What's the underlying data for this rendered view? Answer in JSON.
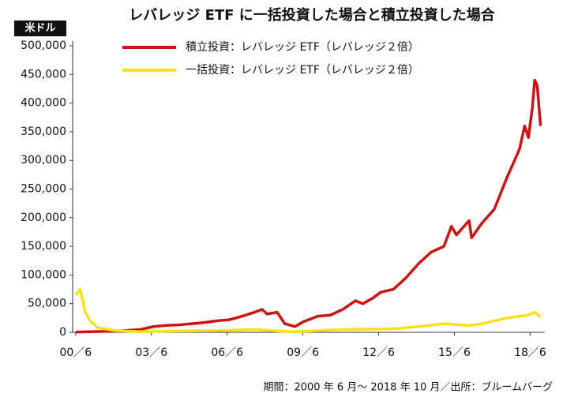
{
  "chart_data": {
    "type": "line",
    "title": "レバレッジ ETF に一括投資した場合と積立投資した場合",
    "y_label": "米ドル",
    "note": "期間：2000 年 6 月〜 2018 年 10 月／出所：ブルームバーグ",
    "legend": "top-left",
    "grid": false,
    "xlim": [
      2000.3,
      2019.0
    ],
    "xticks": [
      {
        "value": 2000.42,
        "label": "00／6"
      },
      {
        "value": 2003.42,
        "label": "03／6"
      },
      {
        "value": 2006.42,
        "label": "06／6"
      },
      {
        "value": 2009.42,
        "label": "09／6"
      },
      {
        "value": 2012.42,
        "label": "12／6"
      },
      {
        "value": 2015.42,
        "label": "15／6"
      },
      {
        "value": 2018.42,
        "label": "18／6"
      }
    ],
    "ylim": [
      0,
      500000
    ],
    "yticks": [
      0,
      {
        "value": 50000,
        "label": "50,000"
      },
      {
        "value": 100000,
        "label": "100,000"
      },
      {
        "value": 150000,
        "label": "150,000"
      },
      {
        "value": 200000,
        "label": "200,000"
      },
      {
        "value": 250000,
        "label": "250,000"
      },
      {
        "value": 300000,
        "label": "300,000"
      },
      {
        "value": 350000,
        "label": "350,000"
      },
      {
        "value": 400000,
        "label": "400,000"
      },
      {
        "value": 450000,
        "label": "450,000"
      },
      {
        "value": 500000,
        "label": "500,000"
      }
    ],
    "series": [
      {
        "name": "積立投資：レバレッジ ETF（レバレッジ２倍）",
        "color": "#cc1414",
        "x": [
          2000.42,
          2001,
          2002,
          2003,
          2003.5,
          2004,
          2004.5,
          2005,
          2005.5,
          2006,
          2006.5,
          2007,
          2007.5,
          2007.8,
          2008,
          2008.4,
          2008.7,
          2009.1,
          2009.42,
          2010,
          2010.5,
          2011,
          2011.5,
          2011.8,
          2012.2,
          2012.5,
          2013,
          2013.5,
          2014,
          2014.5,
          2015,
          2015.3,
          2015.5,
          2016,
          2016.1,
          2016.5,
          2017,
          2017.5,
          2017.8,
          2018,
          2018.2,
          2018.35,
          2018.5,
          2018.6,
          2018.7,
          2018.83
        ],
        "values": [
          500,
          1000,
          2000,
          5000,
          10000,
          12000,
          13000,
          15000,
          17000,
          20000,
          22000,
          28000,
          35000,
          40000,
          32000,
          35000,
          15000,
          10000,
          18000,
          28000,
          30000,
          40000,
          55000,
          50000,
          60000,
          70000,
          75000,
          95000,
          120000,
          140000,
          150000,
          185000,
          170000,
          195000,
          165000,
          190000,
          215000,
          270000,
          300000,
          320000,
          360000,
          340000,
          390000,
          440000,
          430000,
          360000
        ]
      },
      {
        "name": "一括投資：レバレッジ ETF（レバレッジ２倍）",
        "color": "#f5e21b",
        "x": [
          2000.42,
          2000.6,
          2000.8,
          2001,
          2001.3,
          2002,
          2003,
          2004,
          2006,
          2007.5,
          2008.5,
          2009,
          2010,
          2011,
          2013,
          2014,
          2015,
          2016,
          2016.5,
          2017,
          2017.5,
          2018.3,
          2018.6,
          2018.83
        ],
        "values": [
          65000,
          75000,
          35000,
          20000,
          8000,
          3000,
          1000,
          2000,
          3000,
          5000,
          2000,
          1000,
          3000,
          5000,
          6000,
          10000,
          15000,
          12000,
          15000,
          20000,
          25000,
          30000,
          35000,
          27000
        ]
      }
    ]
  }
}
